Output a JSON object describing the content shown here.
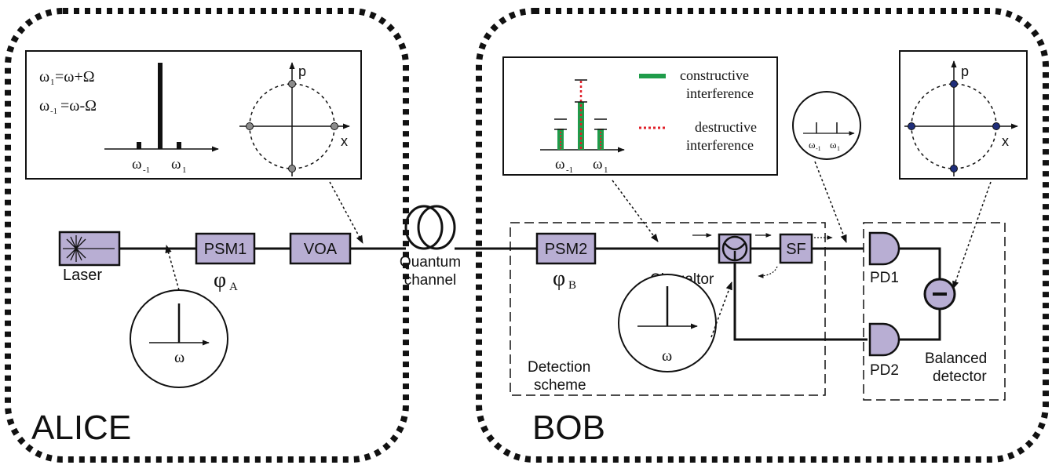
{
  "regions": {
    "alice": "ALICE",
    "bob": "BOB"
  },
  "alice": {
    "laser": "Laser",
    "psm1": "PSM1",
    "phi_a": "φ",
    "phi_a_sub": "A",
    "voa": "VOA",
    "spectrum_omega": "ω",
    "inset": {
      "eq1_lhs": "ω",
      "eq1_sub": "1",
      "eq1_rhs": "=ω+Ω",
      "eq2_lhs": "ω",
      "eq2_sub": "-1",
      "eq2_rhs": "=ω-Ω",
      "tick_left": "ω",
      "tick_left_sub": "-1",
      "tick_right": "ω",
      "tick_right_sub": "1",
      "axis_p": "p",
      "axis_x": "x"
    }
  },
  "channel": {
    "line1": "Quantum",
    "line2": "channel"
  },
  "bob": {
    "psm2": "PSM2",
    "phi_b": "φ",
    "phi_b_sub": "B",
    "circulator": "Circualtor",
    "sf": "SF",
    "detection_line1": "Detection",
    "detection_line2": "scheme",
    "spectrum_omega": "ω",
    "pd1": "PD1",
    "pd2": "PD2",
    "balanced_line1": "Balanced",
    "balanced_line2": "detector",
    "inset": {
      "legend_constructive_1": "constructive",
      "legend_constructive_2": "interference",
      "legend_destructive_1": "destructive",
      "legend_destructive_2": "interference",
      "tick_left": "ω",
      "tick_left_sub": "-1",
      "tick_right": "ω",
      "tick_right_sub": "1",
      "axis_p": "p",
      "axis_x": "x"
    },
    "small_circle": {
      "tick_left": "ω",
      "tick_left_sub": "-1",
      "tick_right": "ω",
      "tick_right_sub": "1"
    }
  },
  "colors": {
    "component_fill": "#b8aed3",
    "constructive": "#1f9c4a",
    "destructive": "#e0202a",
    "alice_points": "#8c8c8c",
    "bob_points": "#1f2e7a"
  }
}
